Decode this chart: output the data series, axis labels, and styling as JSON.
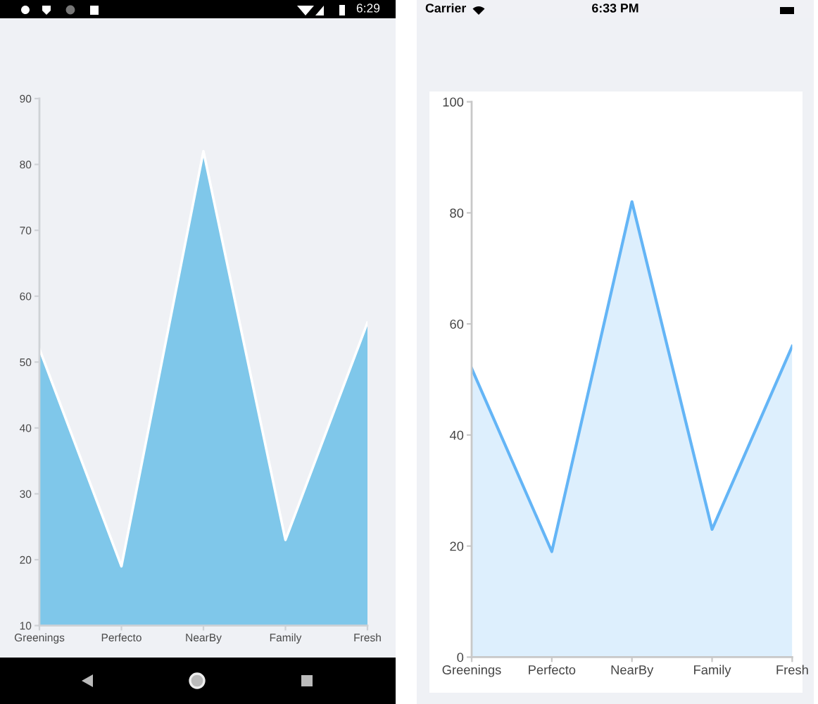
{
  "chart_data": [
    {
      "type": "area",
      "categories": [
        "Greenings",
        "Perfecto",
        "NearBy",
        "Family",
        "Fresh"
      ],
      "values": [
        52,
        19,
        82,
        23,
        56
      ],
      "color": "#7fc7ea",
      "ylim": [
        10,
        90
      ],
      "yticks": [
        10,
        20,
        30,
        40,
        50,
        60,
        70,
        80,
        90
      ],
      "grid": false,
      "annotations": [
        "6:29"
      ]
    },
    {
      "type": "area",
      "categories": [
        "Greenings",
        "Perfecto",
        "NearBy",
        "Family",
        "Fresh"
      ],
      "values": [
        52,
        19,
        82,
        23,
        56
      ],
      "color": "#64b5f6",
      "ylim": [
        0,
        100
      ],
      "yticks": [
        0,
        20,
        40,
        60,
        80,
        100
      ],
      "grid": false,
      "annotations": [
        "Carrier",
        "6:33 PM"
      ]
    }
  ]
}
